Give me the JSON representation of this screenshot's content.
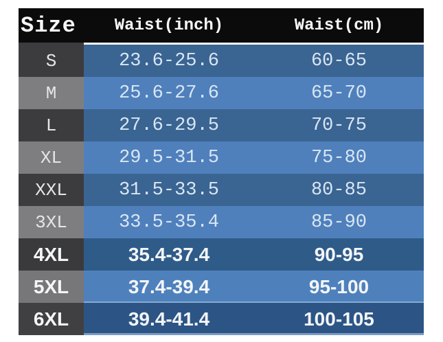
{
  "chart_data": {
    "type": "table",
    "columns": [
      "Size",
      "Waist(inch)",
      "Waist(cm)"
    ],
    "rows": [
      [
        "S",
        "23.6-25.6",
        "60-65"
      ],
      [
        "M",
        "25.6-27.6",
        "65-70"
      ],
      [
        "L",
        "27.6-29.5",
        "70-75"
      ],
      [
        "XL",
        "29.5-31.5",
        "75-80"
      ],
      [
        "XXL",
        "31.5-33.5",
        "80-85"
      ],
      [
        "3XL",
        "33.5-35.4",
        "85-90"
      ],
      [
        "4XL",
        "35.4-37.4",
        "90-95"
      ],
      [
        "5XL",
        "37.4-39.4",
        "95-100"
      ],
      [
        "6XL",
        "39.4-41.4",
        "100-105"
      ]
    ],
    "layout": {
      "legend": "none",
      "grid": "off",
      "header_position": "top",
      "row_emphasis_bold": [
        "4XL",
        "5XL",
        "6XL"
      ]
    },
    "colors": {
      "header_bg": "#0b0b0b",
      "header_text": "#f7f7f7",
      "size_column_dark": "#3c3c3e",
      "size_column_light": "#7e7e81",
      "row_blue_dark": "#3a6492",
      "row_blue_light": "#4f80bc",
      "row_4xl_blue": "#2f5b89",
      "row_5xl_blue": "#4e81bc",
      "row_6xl_blue": "#2c5586",
      "value_text": "#d9e6f3",
      "page_background": "#ffffff"
    }
  }
}
